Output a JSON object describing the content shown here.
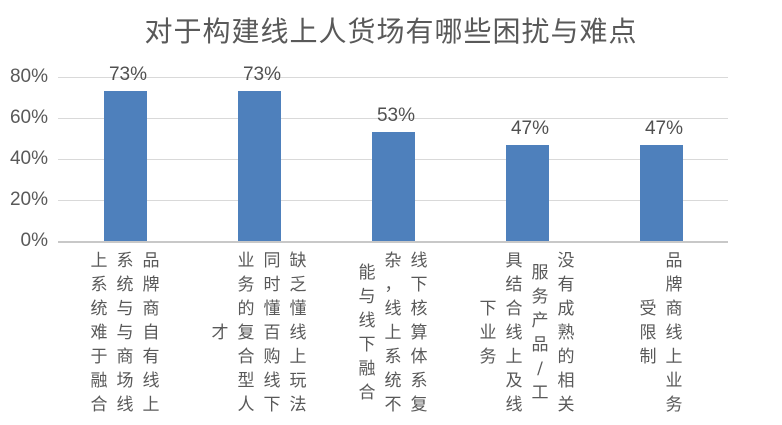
{
  "title": "对于构建线上人货场有哪些困扰与难点",
  "colors": {
    "bar_fill": "#4e80bc",
    "gridline": "#d9d9d9",
    "axis_line": "#c8c8c8",
    "title_text": "#595959",
    "tick_text": "#595959",
    "data_label_text": "#505050",
    "category_text": "#595959",
    "background": "#ffffff"
  },
  "chart_data": {
    "type": "bar",
    "title": "对于构建线上人货场有哪些困扰与难点",
    "categories": [
      "品牌商自有线上系统与与商场线上系统难于融合",
      "缺乏懂线上玩法同时懂百购线下业务的复合型人才",
      "线下核算体系复杂，线上系统不能与线下融合",
      "没有成熟的相关服务产品/工具结合线上及线下业务",
      "品牌商线上业务受限制"
    ],
    "category_columns": [
      [
        "品牌商自有线上",
        "系统与与商场线",
        "上系统难于融合"
      ],
      [
        "缺乏懂线上玩法",
        "同时懂百购线下",
        "业务的复合型人",
        "才"
      ],
      [
        "线下核算体系复",
        "杂，线上系统不",
        "能与线下融合"
      ],
      [
        "没有成熟的相关",
        "服务产品/工",
        "具结合线上及线",
        "下业务"
      ],
      [
        "品牌商线上业务",
        "受限制"
      ]
    ],
    "values": [
      73,
      73,
      53,
      47,
      47
    ],
    "data_labels": [
      "73%",
      "73%",
      "53%",
      "47%",
      "47%"
    ],
    "y_ticks": [
      "0%",
      "20%",
      "40%",
      "60%",
      "80%"
    ],
    "y_tick_values": [
      0,
      20,
      40,
      60,
      80
    ],
    "ylim": [
      0,
      80
    ],
    "xlabel": "",
    "ylabel": "",
    "grid": true,
    "legend": false
  }
}
